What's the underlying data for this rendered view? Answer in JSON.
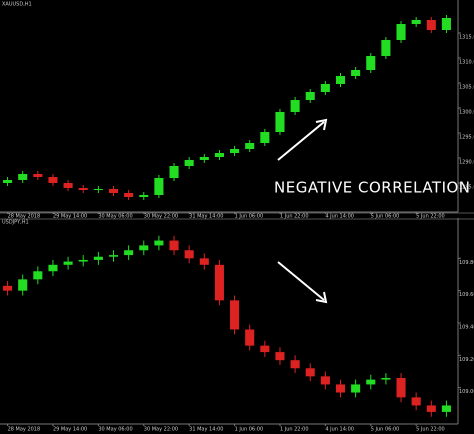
{
  "chart_data": [
    {
      "type": "candlestick",
      "title": "XAUUSD,H1",
      "annotation": "NEGATIVE CORRELATION",
      "up_color": "#22dd22",
      "down_color": "#dd2222",
      "categories": [
        "28 May 2018",
        null,
        null,
        "29 May 14:00",
        null,
        null,
        "30 May 06:00",
        null,
        null,
        "30 May 22:00",
        null,
        null,
        "31 May 14:00",
        null,
        null,
        "1 Jun 06:00",
        null,
        null,
        "1 Jun 22:00",
        null,
        null,
        "4 Jun 14:00",
        null,
        null,
        "5 Jun 06:00",
        null,
        null,
        "5 Jun 22:00",
        null,
        null
      ],
      "open": [
        1285.0,
        1285.6,
        1286.8,
        1286.2,
        1285.0,
        1284.0,
        1283.6,
        1283.8,
        1283.0,
        1282.2,
        1282.6,
        1286.0,
        1288.4,
        1289.6,
        1290.2,
        1291.0,
        1291.8,
        1293.0,
        1295.2,
        1299.2,
        1301.6,
        1303.2,
        1304.8,
        1306.4,
        1307.6,
        1310.4,
        1313.6,
        1316.8,
        1317.6,
        1315.6
      ],
      "high": [
        1286.2,
        1287.4,
        1287.4,
        1286.8,
        1285.6,
        1284.6,
        1284.4,
        1284.4,
        1283.6,
        1283.2,
        1286.6,
        1289.0,
        1290.2,
        1290.8,
        1291.6,
        1292.4,
        1293.6,
        1295.8,
        1299.8,
        1302.2,
        1303.8,
        1305.4,
        1307.0,
        1308.2,
        1311.0,
        1314.2,
        1317.4,
        1318.2,
        1318.2,
        1318.6
      ],
      "low": [
        1284.4,
        1285.0,
        1285.6,
        1284.4,
        1283.4,
        1283.0,
        1283.0,
        1282.4,
        1281.6,
        1281.6,
        1282.0,
        1285.4,
        1287.8,
        1289.0,
        1289.6,
        1290.4,
        1291.2,
        1292.4,
        1294.6,
        1298.6,
        1301.0,
        1302.6,
        1304.2,
        1305.8,
        1307.0,
        1309.8,
        1313.0,
        1316.2,
        1315.0,
        1315.0
      ],
      "close": [
        1285.6,
        1286.8,
        1286.2,
        1285.0,
        1284.0,
        1283.6,
        1283.8,
        1283.0,
        1282.2,
        1282.6,
        1286.0,
        1288.4,
        1289.6,
        1290.2,
        1291.0,
        1291.8,
        1293.0,
        1295.2,
        1299.2,
        1301.6,
        1303.2,
        1304.8,
        1306.4,
        1307.6,
        1310.4,
        1313.6,
        1316.8,
        1317.6,
        1315.6,
        1318.0
      ],
      "ylim": [
        1280,
        1320
      ],
      "yticks": [
        {
          "value": 1285,
          "label": "1285.00"
        },
        {
          "value": 1290,
          "label": "1290.00"
        },
        {
          "value": 1295,
          "label": "1295.00"
        },
        {
          "value": 1300,
          "label": "1300.00"
        },
        {
          "value": 1305,
          "label": "1305.00"
        },
        {
          "value": 1310,
          "label": "1310.00"
        },
        {
          "value": 1315,
          "label": "1315.00"
        }
      ]
    },
    {
      "type": "candlestick",
      "title": "USDJPY,H1",
      "up_color": "#22dd22",
      "down_color": "#dd2222",
      "categories": [
        "28 May 2018",
        null,
        null,
        "29 May 14:00",
        null,
        null,
        "30 May 06:00",
        null,
        null,
        "30 May 22:00",
        null,
        null,
        "31 May 14:00",
        null,
        null,
        "1 Jun 06:00",
        null,
        null,
        "1 Jun 22:00",
        null,
        null,
        "4 Jun 14:00",
        null,
        null,
        "5 Jun 06:00",
        null,
        null,
        "5 Jun 22:00",
        null,
        null
      ],
      "open": [
        109.63,
        109.6,
        109.67,
        109.72,
        109.76,
        109.78,
        109.79,
        109.81,
        109.82,
        109.85,
        109.88,
        109.91,
        109.85,
        109.8,
        109.76,
        109.54,
        109.36,
        109.26,
        109.22,
        109.17,
        109.12,
        109.07,
        109.02,
        108.97,
        109.02,
        109.05,
        109.06,
        108.94,
        108.89,
        108.85
      ],
      "high": [
        109.66,
        109.7,
        109.75,
        109.79,
        109.81,
        109.82,
        109.84,
        109.85,
        109.88,
        109.91,
        109.94,
        109.94,
        109.88,
        109.83,
        109.79,
        109.57,
        109.39,
        109.29,
        109.25,
        109.2,
        109.15,
        109.1,
        109.05,
        109.05,
        109.08,
        109.09,
        109.09,
        108.97,
        108.92,
        108.92
      ],
      "low": [
        109.57,
        109.57,
        109.64,
        109.69,
        109.73,
        109.75,
        109.76,
        109.78,
        109.79,
        109.82,
        109.85,
        109.82,
        109.77,
        109.73,
        109.51,
        109.33,
        109.23,
        109.19,
        109.14,
        109.09,
        109.04,
        108.99,
        108.94,
        108.94,
        108.99,
        109.02,
        108.91,
        108.86,
        108.82,
        108.82
      ],
      "close": [
        109.6,
        109.67,
        109.72,
        109.76,
        109.78,
        109.79,
        109.81,
        109.82,
        109.85,
        109.88,
        109.91,
        109.85,
        109.8,
        109.76,
        109.54,
        109.36,
        109.26,
        109.22,
        109.17,
        109.12,
        109.07,
        109.02,
        108.97,
        109.02,
        109.05,
        109.06,
        108.94,
        108.89,
        108.85,
        108.89
      ],
      "ylim": [
        108.8,
        110.0
      ],
      "yticks": [
        {
          "value": 109.0,
          "label": "109.000"
        },
        {
          "value": 109.2,
          "label": "109.200"
        },
        {
          "value": 109.4,
          "label": "109.400"
        },
        {
          "value": 109.6,
          "label": "109.600"
        },
        {
          "value": 109.8,
          "label": "109.800"
        }
      ]
    }
  ]
}
